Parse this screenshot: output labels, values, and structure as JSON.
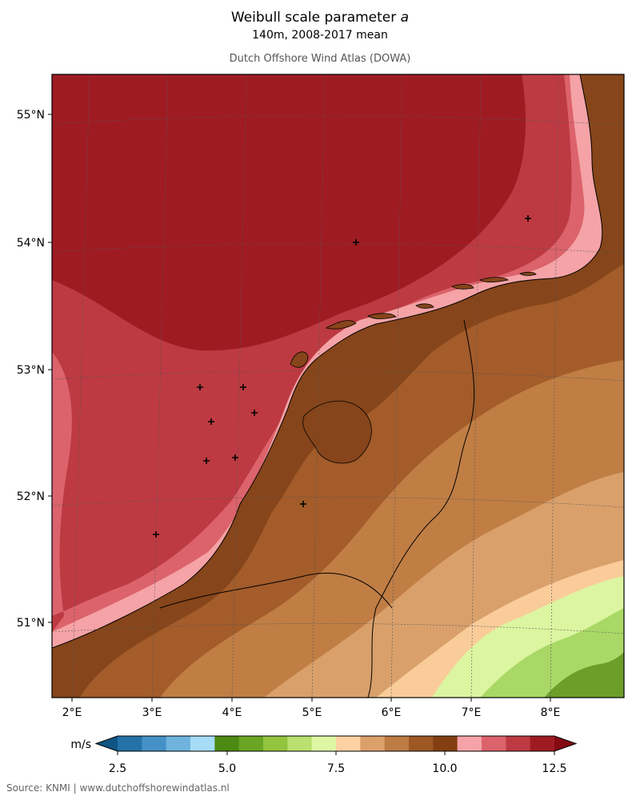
{
  "header": {
    "title": "Weibull scale parameter a",
    "subtitle": "140m, 2008-2017 mean",
    "credit": "Dutch Offshore Wind Atlas (DOWA)"
  },
  "map": {
    "lat_labels": [
      "55°N",
      "54°N",
      "53°N",
      "52°N",
      "51°N"
    ],
    "lon_labels": [
      "2°E",
      "3°E",
      "4°E",
      "5°E",
      "6°E",
      "7°E",
      "8°E"
    ],
    "colors": {
      "sea_deep": "#9e1b22",
      "sea_mid": "#bd3a42",
      "sea_near": "#dc636b",
      "sea_coast": "#f5a3a6",
      "land_dark": "#86451a",
      "land_mid": "#a35c2a",
      "land_light": "#c07e45",
      "land_pale": "#d9a06b",
      "land_cream": "#f9cc9a",
      "green_light": "#dcf5a0",
      "green_mid": "#a9d866",
      "green_dark": "#6d9e2a"
    }
  },
  "colorbar": {
    "unit": "m/s",
    "ticks": [
      "2.5",
      "5.0",
      "7.5",
      "10.0",
      "12.5"
    ],
    "colors": [
      "#0e5584",
      "#2472a8",
      "#4591c6",
      "#6fb3de",
      "#a6dcf6",
      "#4c8a14",
      "#6ba524",
      "#92c43e",
      "#b9e070",
      "#dff7a4",
      "#fdd1a2",
      "#dca06b",
      "#bd7c44",
      "#9d5824",
      "#833f12",
      "#f5a3a6",
      "#dc636b",
      "#bd3a42",
      "#9e1b22",
      "#840a12"
    ]
  },
  "footer": {
    "source": "Source: KNMI | www.dutchoffshorewindatlas.nl"
  }
}
